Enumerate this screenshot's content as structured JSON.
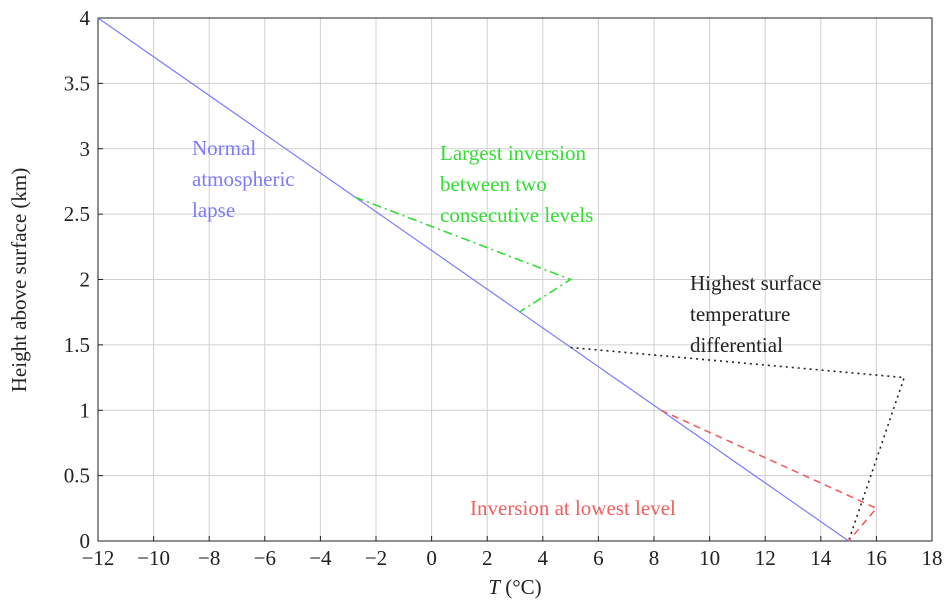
{
  "chart_data": {
    "type": "line",
    "xlabel_symbol": "T",
    "xlabel_unit": "(°C)",
    "ylabel": "Height above surface (km)",
    "xlim": [
      -12,
      18
    ],
    "ylim": [
      0,
      4
    ],
    "xticks": [
      {
        "value": -12,
        "label": "−12"
      },
      {
        "value": -10,
        "label": "−10"
      },
      {
        "value": -8,
        "label": "−8"
      },
      {
        "value": -6,
        "label": "−6"
      },
      {
        "value": -4,
        "label": "−4"
      },
      {
        "value": -2,
        "label": "−2"
      },
      0,
      2,
      4,
      6,
      8,
      10,
      12,
      14,
      16,
      18
    ],
    "yticks": [
      0,
      0.5,
      1,
      1.5,
      2,
      2.5,
      3,
      3.5,
      4
    ],
    "grid": true,
    "series": [
      {
        "label": [
          "Normal",
          "atmospheric",
          "lapse"
        ],
        "color": "#7b7bff",
        "style": "solid",
        "x": [
          -12,
          15
        ],
        "values": [
          4,
          0
        ]
      },
      {
        "label": [
          "Largest inversion",
          "between two",
          "consecutive levels"
        ],
        "color": "#33dd33",
        "style": "dashdot",
        "x": [
          -2.76,
          5,
          3.15
        ],
        "values": [
          2.63,
          2,
          1.75
        ]
      },
      {
        "label": [
          "Highest surface",
          "temperature",
          "differential"
        ],
        "color": "#222222",
        "style": "dotted",
        "x": [
          5,
          17,
          15
        ],
        "values": [
          1.48,
          1.25,
          0
        ]
      },
      {
        "label": [
          "Inversion at lowest level"
        ],
        "color": "#f06060",
        "style": "dashed",
        "x": [
          8.25,
          16,
          15
        ],
        "values": [
          1,
          0.25,
          0
        ]
      }
    ]
  }
}
